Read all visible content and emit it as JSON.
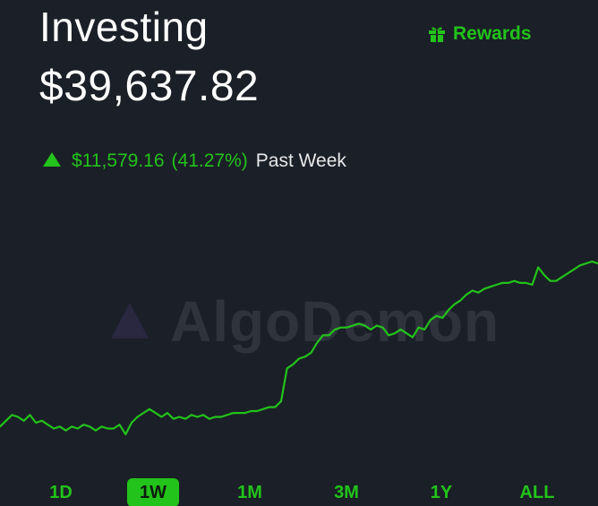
{
  "header": {
    "title": "Investing",
    "balance": "$39,637.82",
    "rewards_label": "Rewards"
  },
  "performance": {
    "change_amount": "$11,579.16",
    "change_percent": "(41.27%)",
    "period_label": "Past Week",
    "direction": "up"
  },
  "watermark": {
    "text": "AlgoDemon"
  },
  "colors": {
    "background": "#1b1f27",
    "accent_green": "#22c31a",
    "text_primary": "#ffffff",
    "watermark": "#2f333c"
  },
  "icons": {
    "rewards": "gift-icon",
    "change": "triangle-up-icon",
    "watermark": "triangle-logo-icon"
  },
  "time_ranges": {
    "items": [
      "1D",
      "1W",
      "1M",
      "3M",
      "1Y",
      "ALL"
    ],
    "selected": "1W"
  },
  "chart_data": {
    "type": "line",
    "title": "",
    "xlabel": "",
    "ylabel": "",
    "grid": false,
    "legend": "none",
    "x": [
      0,
      1,
      2,
      3,
      4,
      5,
      6,
      7,
      8,
      9,
      10,
      11,
      12,
      13,
      14,
      15,
      16,
      17,
      18,
      19,
      20,
      21,
      22,
      23,
      24,
      25,
      26,
      27,
      28,
      29,
      30,
      31,
      32,
      33,
      34,
      35,
      36,
      37,
      38,
      39,
      40,
      41,
      42,
      43,
      44,
      45,
      46,
      47,
      48,
      49,
      50,
      51,
      52,
      53,
      54,
      55,
      56,
      57,
      58,
      59,
      60,
      61,
      62,
      63,
      64,
      65,
      66,
      67,
      68,
      69,
      70,
      71,
      72,
      73,
      74,
      75,
      76,
      77,
      78,
      79,
      80,
      81,
      82,
      83,
      84,
      85,
      86,
      87,
      88,
      89,
      90,
      91,
      92,
      93,
      94,
      95,
      96,
      97,
      98,
      99,
      100
    ],
    "values": [
      15,
      18,
      21,
      20,
      18,
      21,
      17,
      18,
      16,
      14,
      15,
      13,
      15,
      14,
      16,
      15,
      13,
      15,
      14,
      14,
      16,
      11,
      17,
      20,
      22,
      24,
      22,
      20,
      22,
      19,
      20,
      19,
      21,
      20,
      21,
      19,
      20,
      20,
      21,
      22,
      22,
      22,
      23,
      23,
      24,
      25,
      25,
      28,
      45,
      47,
      50,
      51,
      53,
      58,
      62,
      62,
      65,
      66,
      66,
      67,
      68,
      67,
      65,
      67,
      66,
      62,
      63,
      65,
      63,
      61,
      66,
      65,
      70,
      72,
      71,
      75,
      78,
      80,
      83,
      85,
      84,
      86,
      87,
      88,
      89,
      89,
      90,
      89,
      89,
      88,
      97,
      93,
      90,
      90,
      92,
      94,
      96,
      98,
      99,
      100,
      99
    ]
  }
}
